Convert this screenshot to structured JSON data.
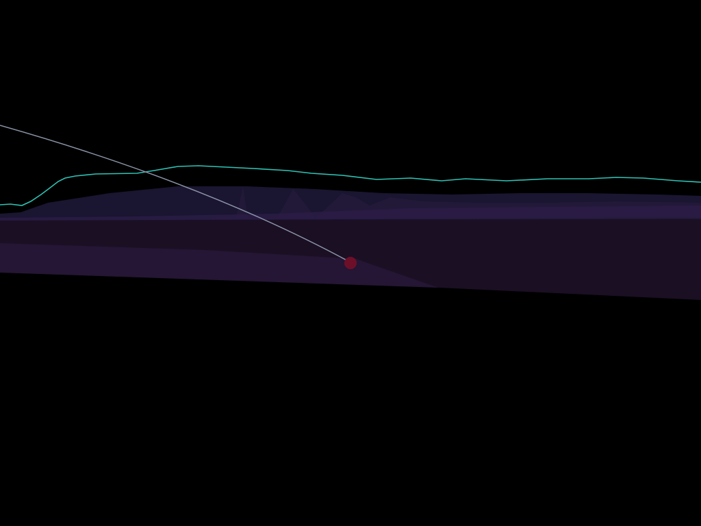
{
  "scene": {
    "background_color": "#000000",
    "horizon_line_color": "#2ec4b6",
    "trajectory_line_color": "#8a93a6",
    "ball_color": "#6e0f2a",
    "terrain_colors": {
      "far_ridge": "#1a1530",
      "mid_spikes": "#231a3a",
      "near_band": "#2a1c45",
      "ground_plane": "#1b0f24",
      "ground_front": "#241634"
    }
  }
}
